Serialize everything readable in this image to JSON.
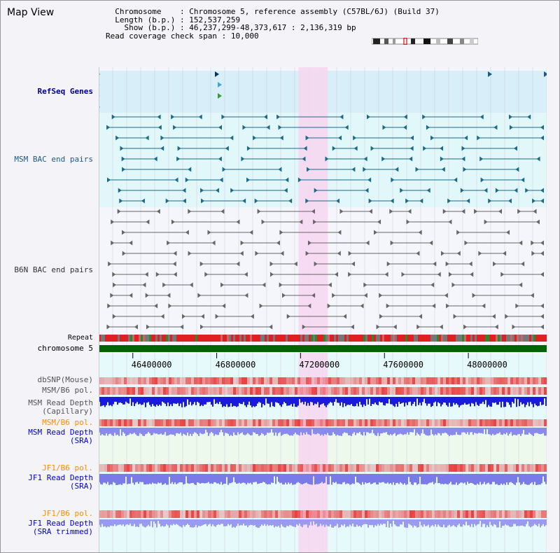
{
  "app": {
    "title": "Map View"
  },
  "header": {
    "chromosome_key": "Chromosome",
    "chromosome_val": "Chromosome 5, reference assembly (C57BL/6J) (Build 37)",
    "length_key": "Length (b.p.)",
    "length_val": "152,537,259",
    "show_key": "Show (b.p.)",
    "show_val": "46,237,299-48,373,617 : 2,136,319 bp",
    "coverage_key": "Read coverage check span",
    "coverage_val": "10,000"
  },
  "view": {
    "start": 46237299,
    "end": 48373617,
    "highlight_start": 47190000,
    "highlight_end": 47330000
  },
  "axis": {
    "ticks": [
      46400000,
      46800000,
      47200000,
      47600000,
      48000000
    ],
    "tick_labels": [
      "46400000",
      "46800000",
      "47200000",
      "47600000",
      "48000000"
    ]
  },
  "tracks": {
    "refseq": "RefSeq Genes",
    "msm_bac": "MSM BAC end pairs",
    "b6n_bac": "B6N BAC end pairs",
    "repeat": "Repeat",
    "chromosome": "chromosome 5",
    "dbsnp": "dbSNP(Mouse)",
    "msm_b6_pol_1": "MSM/B6 pol.",
    "msm_read_depth_cap_1": "MSM Read Depth",
    "msm_read_depth_cap_2": "(Capillary)",
    "msm_b6_pol_2": "MSM/B6 pol.",
    "msm_read_depth_sra_1": "MSM Read Depth",
    "msm_read_depth_sra_2": "(SRA)",
    "jf1_b6_pol_1": "JF1/B6 pol.",
    "jf1_read_depth_sra_1": "JF1 Read Depth",
    "jf1_read_depth_sra_2": "(SRA)",
    "jf1_b6_pol_2": "JF1/B6 pol.",
    "jf1_read_depth_trim_1": "JF1 Read Depth",
    "jf1_read_depth_trim_2": "(SRA trimmed)"
  },
  "colors": {
    "refseq_label": "#00008b",
    "msm_label": "#1a5a8a",
    "b6n_label": "#333333",
    "orange_label": "#ff8c00",
    "blue_label": "#0000cc",
    "highlight": "#f7d6f0",
    "refseq_bg": "#d8eef8",
    "msm_bg": "#e2f7fa",
    "chromosome_green": "#006400"
  },
  "icons": {
    "ideogram": "chromosome-ideogram"
  }
}
